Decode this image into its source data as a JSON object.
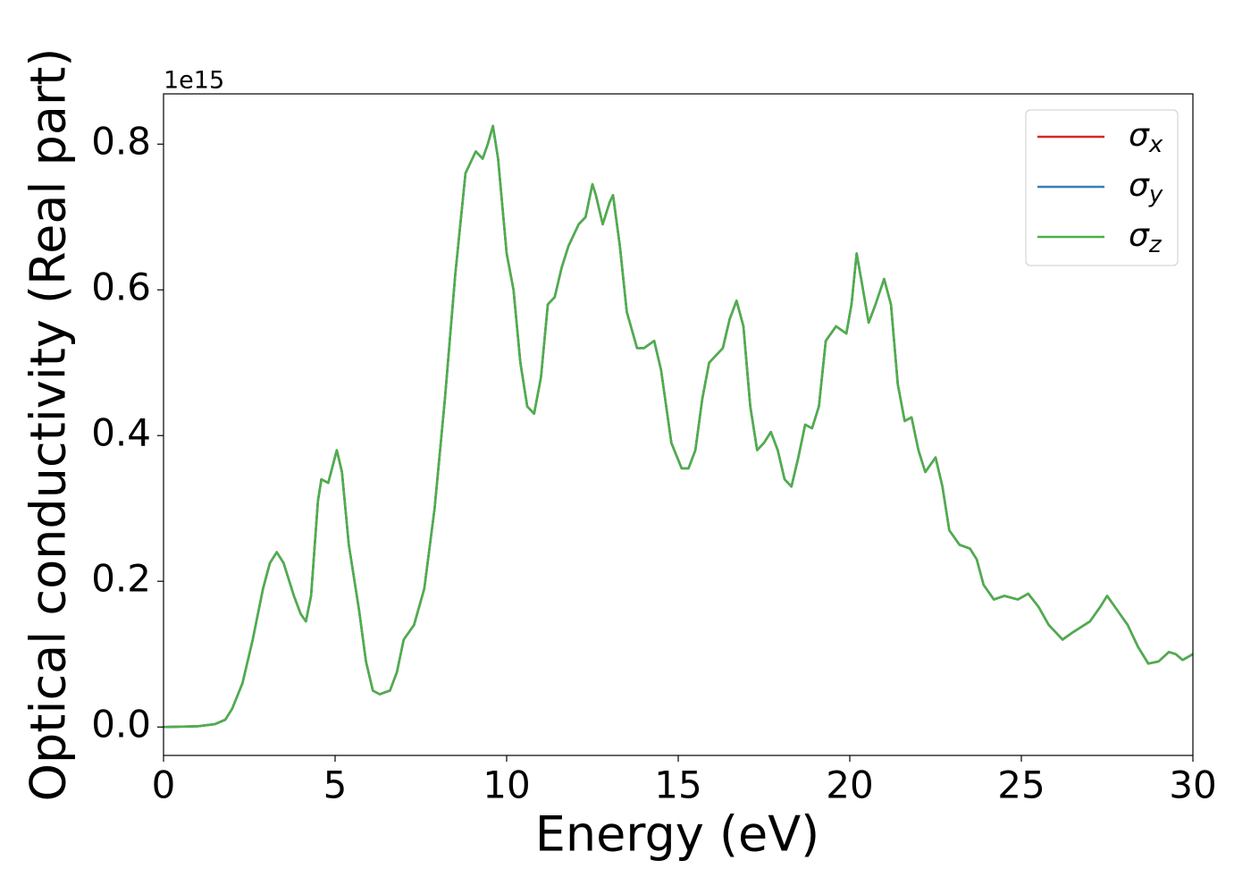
{
  "chart_data": {
    "type": "line",
    "xlabel": "Energy (eV)",
    "ylabel": "Optical conductivity (Real part)",
    "y_offset_label": "1e15",
    "xlim": [
      0,
      30
    ],
    "xticks": [
      0,
      5,
      10,
      15,
      20,
      25,
      30
    ],
    "ylim": [
      -0.039,
      0.869
    ],
    "yticks": [
      {
        "value": 0,
        "label": "0.0"
      },
      0.2,
      0.4,
      0.6,
      0.8
    ],
    "legend": "upper right",
    "x": [
      0,
      1,
      1.5,
      1.8,
      2.0,
      2.3,
      2.6,
      2.9,
      3.1,
      3.3,
      3.5,
      3.8,
      4.0,
      4.15,
      4.3,
      4.5,
      4.6,
      4.8,
      5.05,
      5.2,
      5.4,
      5.7,
      5.9,
      6.1,
      6.3,
      6.6,
      6.8,
      7.0,
      7.3,
      7.6,
      7.9,
      8.2,
      8.5,
      8.8,
      9.1,
      9.3,
      9.45,
      9.6,
      9.75,
      10.0,
      10.2,
      10.4,
      10.6,
      10.8,
      11.0,
      11.2,
      11.4,
      11.6,
      11.8,
      12.1,
      12.3,
      12.5,
      12.6,
      12.8,
      13.0,
      13.1,
      13.3,
      13.5,
      13.8,
      14.0,
      14.3,
      14.5,
      14.8,
      15.1,
      15.3,
      15.5,
      15.7,
      15.9,
      16.1,
      16.3,
      16.5,
      16.7,
      16.9,
      17.1,
      17.3,
      17.5,
      17.7,
      17.9,
      18.1,
      18.3,
      18.5,
      18.7,
      18.9,
      19.1,
      19.3,
      19.6,
      19.9,
      20.05,
      20.2,
      20.35,
      20.55,
      20.75,
      21.0,
      21.2,
      21.4,
      21.6,
      21.8,
      22.0,
      22.2,
      22.5,
      22.7,
      22.9,
      23.2,
      23.5,
      23.7,
      23.9,
      24.2,
      24.5,
      24.9,
      25.2,
      25.5,
      25.8,
      26.2,
      26.5,
      27.0,
      27.3,
      27.5,
      27.8,
      28.1,
      28.4,
      28.7,
      29.0,
      29.3,
      29.5,
      29.7,
      30.0
    ],
    "series": [
      {
        "name": "σx",
        "color": "#d62728",
        "values": [
          0,
          0.001,
          0.004,
          0.01,
          0.025,
          0.06,
          0.12,
          0.19,
          0.225,
          0.24,
          0.225,
          0.18,
          0.155,
          0.145,
          0.18,
          0.31,
          0.34,
          0.335,
          0.38,
          0.35,
          0.25,
          0.16,
          0.09,
          0.05,
          0.045,
          0.05,
          0.075,
          0.12,
          0.14,
          0.19,
          0.3,
          0.45,
          0.62,
          0.76,
          0.79,
          0.78,
          0.8,
          0.825,
          0.78,
          0.65,
          0.6,
          0.5,
          0.44,
          0.43,
          0.48,
          0.58,
          0.59,
          0.63,
          0.66,
          0.69,
          0.7,
          0.745,
          0.73,
          0.69,
          0.72,
          0.73,
          0.66,
          0.57,
          0.52,
          0.52,
          0.53,
          0.49,
          0.39,
          0.355,
          0.355,
          0.38,
          0.45,
          0.5,
          0.51,
          0.52,
          0.56,
          0.585,
          0.55,
          0.44,
          0.38,
          0.39,
          0.405,
          0.38,
          0.34,
          0.33,
          0.37,
          0.415,
          0.41,
          0.44,
          0.53,
          0.55,
          0.54,
          0.58,
          0.65,
          0.61,
          0.555,
          0.58,
          0.615,
          0.58,
          0.47,
          0.42,
          0.425,
          0.38,
          0.35,
          0.37,
          0.33,
          0.27,
          0.25,
          0.245,
          0.23,
          0.195,
          0.175,
          0.18,
          0.175,
          0.183,
          0.165,
          0.14,
          0.12,
          0.13,
          0.145,
          0.165,
          0.18,
          0.16,
          0.14,
          0.11,
          0.087,
          0.09,
          0.103,
          0.1,
          0.092,
          0.1
        ]
      },
      {
        "name": "σy",
        "color": "#377eb8",
        "values": [
          0,
          0.001,
          0.004,
          0.01,
          0.025,
          0.06,
          0.12,
          0.19,
          0.225,
          0.24,
          0.225,
          0.18,
          0.155,
          0.145,
          0.18,
          0.31,
          0.34,
          0.335,
          0.38,
          0.35,
          0.25,
          0.16,
          0.09,
          0.05,
          0.045,
          0.05,
          0.075,
          0.12,
          0.14,
          0.19,
          0.3,
          0.45,
          0.62,
          0.76,
          0.79,
          0.78,
          0.8,
          0.825,
          0.78,
          0.65,
          0.6,
          0.5,
          0.44,
          0.43,
          0.48,
          0.58,
          0.59,
          0.63,
          0.66,
          0.69,
          0.7,
          0.745,
          0.73,
          0.69,
          0.72,
          0.73,
          0.66,
          0.57,
          0.52,
          0.52,
          0.53,
          0.49,
          0.39,
          0.355,
          0.355,
          0.38,
          0.45,
          0.5,
          0.51,
          0.52,
          0.56,
          0.585,
          0.55,
          0.44,
          0.38,
          0.39,
          0.405,
          0.38,
          0.34,
          0.33,
          0.37,
          0.415,
          0.41,
          0.44,
          0.53,
          0.55,
          0.54,
          0.58,
          0.65,
          0.61,
          0.555,
          0.58,
          0.615,
          0.58,
          0.47,
          0.42,
          0.425,
          0.38,
          0.35,
          0.37,
          0.33,
          0.27,
          0.25,
          0.245,
          0.23,
          0.195,
          0.175,
          0.18,
          0.175,
          0.183,
          0.165,
          0.14,
          0.12,
          0.13,
          0.145,
          0.165,
          0.18,
          0.16,
          0.14,
          0.11,
          0.087,
          0.09,
          0.103,
          0.1,
          0.092,
          0.1
        ]
      },
      {
        "name": "σz",
        "color": "#4daf4a",
        "values": [
          0,
          0.001,
          0.004,
          0.01,
          0.025,
          0.06,
          0.12,
          0.19,
          0.225,
          0.24,
          0.225,
          0.18,
          0.155,
          0.145,
          0.18,
          0.31,
          0.34,
          0.335,
          0.38,
          0.35,
          0.25,
          0.16,
          0.09,
          0.05,
          0.045,
          0.05,
          0.075,
          0.12,
          0.14,
          0.19,
          0.3,
          0.45,
          0.62,
          0.76,
          0.79,
          0.78,
          0.8,
          0.825,
          0.78,
          0.65,
          0.6,
          0.5,
          0.44,
          0.43,
          0.48,
          0.58,
          0.59,
          0.63,
          0.66,
          0.69,
          0.7,
          0.745,
          0.73,
          0.69,
          0.72,
          0.73,
          0.66,
          0.57,
          0.52,
          0.52,
          0.53,
          0.49,
          0.39,
          0.355,
          0.355,
          0.38,
          0.45,
          0.5,
          0.51,
          0.52,
          0.56,
          0.585,
          0.55,
          0.44,
          0.38,
          0.39,
          0.405,
          0.38,
          0.34,
          0.33,
          0.37,
          0.415,
          0.41,
          0.44,
          0.53,
          0.55,
          0.54,
          0.58,
          0.65,
          0.61,
          0.555,
          0.58,
          0.615,
          0.58,
          0.47,
          0.42,
          0.425,
          0.38,
          0.35,
          0.37,
          0.33,
          0.27,
          0.25,
          0.245,
          0.23,
          0.195,
          0.175,
          0.18,
          0.175,
          0.183,
          0.165,
          0.14,
          0.12,
          0.13,
          0.145,
          0.165,
          0.18,
          0.16,
          0.14,
          0.11,
          0.087,
          0.09,
          0.103,
          0.1,
          0.092,
          0.1
        ]
      }
    ]
  }
}
